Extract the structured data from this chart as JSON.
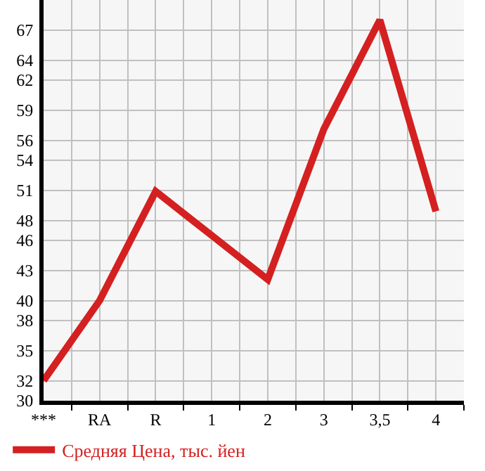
{
  "chart_data": {
    "type": "line",
    "categories": [
      "***",
      "RA",
      "R",
      "1",
      "2",
      "3",
      "3,5",
      "4"
    ],
    "series": [
      {
        "name": "Средняя Цена, тыс. йен",
        "color": "#d42020",
        "values": [
          32.0,
          40.0,
          50.9,
          46.5,
          42.1,
          57.1,
          68.0,
          48.9
        ]
      }
    ],
    "ylim": [
      30,
      70
    ],
    "yticks": [
      30,
      32,
      35,
      38,
      40,
      43,
      46,
      48,
      51,
      54,
      56,
      59,
      62,
      64,
      67
    ],
    "grid": true,
    "legend": "bottom",
    "marker": "none",
    "line_style": "solid"
  }
}
